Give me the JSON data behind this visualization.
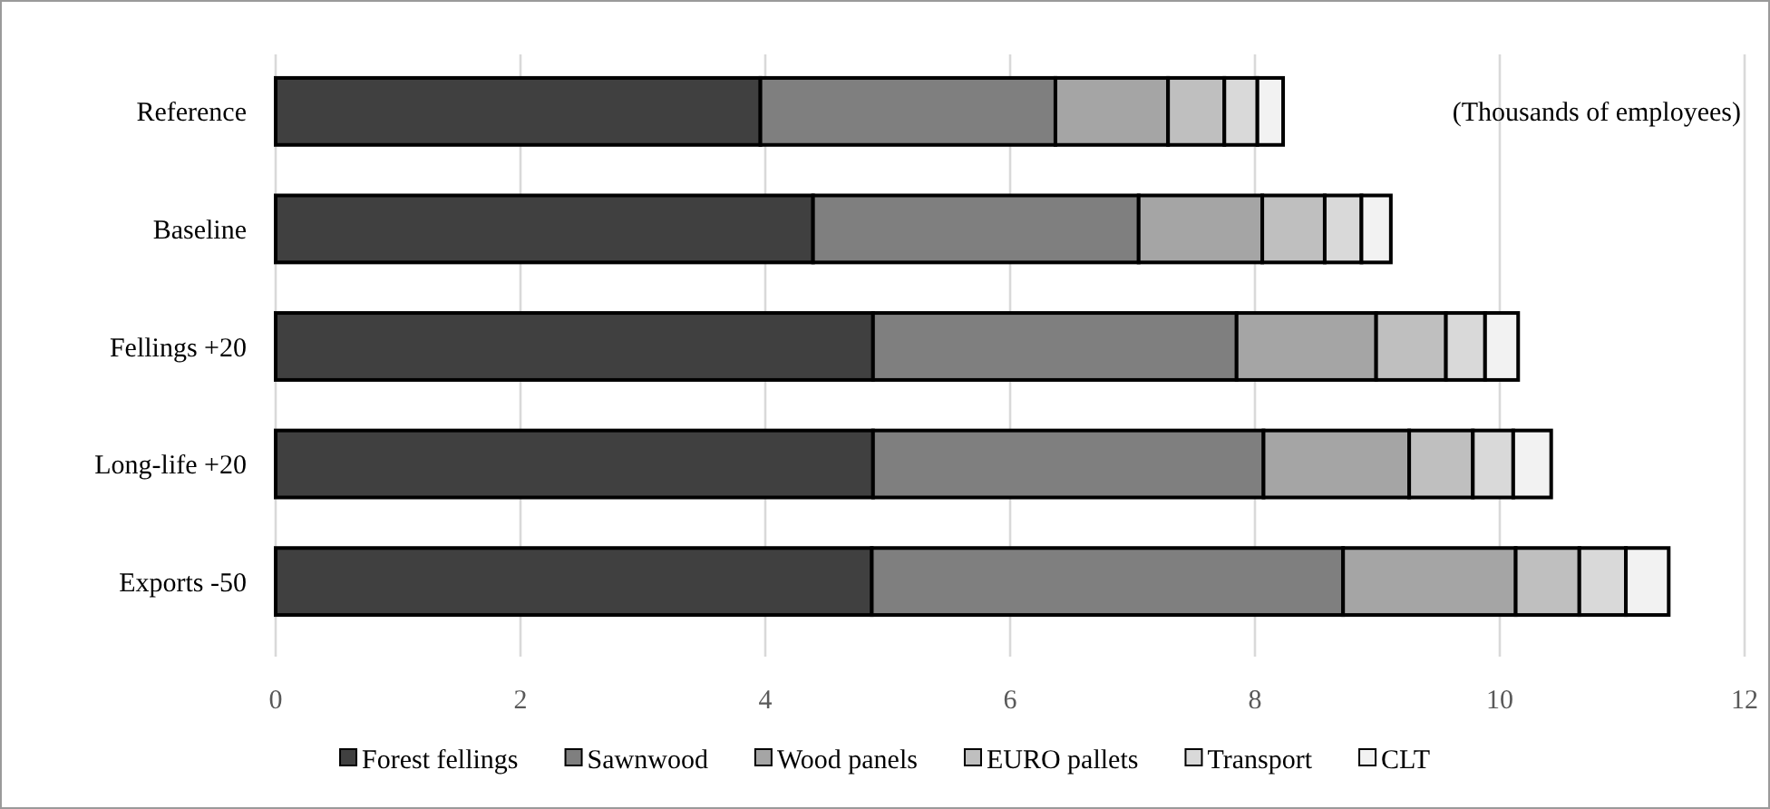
{
  "chart_data": {
    "type": "bar",
    "orientation": "horizontal",
    "stacked": true,
    "categories": [
      "Reference",
      "Baseline",
      "Fellings +20",
      "Long-life +20",
      "Exports -50"
    ],
    "series": [
      {
        "name": "Forest fellings",
        "color": "#404040",
        "values": [
          3.96,
          4.39,
          4.88,
          4.88,
          4.87
        ]
      },
      {
        "name": "Sawnwood",
        "color": "#7f7f7f",
        "values": [
          2.41,
          2.66,
          2.97,
          3.19,
          3.85
        ]
      },
      {
        "name": "Wood panels",
        "color": "#a5a5a5",
        "values": [
          0.92,
          1.01,
          1.14,
          1.19,
          1.41
        ]
      },
      {
        "name": "EURO pallets",
        "color": "#bfbfbf",
        "values": [
          0.46,
          0.51,
          0.57,
          0.52,
          0.52
        ]
      },
      {
        "name": "Transport",
        "color": "#d9d9d9",
        "values": [
          0.27,
          0.3,
          0.32,
          0.33,
          0.38
        ]
      },
      {
        "name": "CLT",
        "color": "#f2f2f2",
        "values": [
          0.21,
          0.24,
          0.27,
          0.31,
          0.35
        ]
      }
    ],
    "xlim": [
      0,
      12
    ],
    "xticks": [
      0,
      2,
      4,
      6,
      8,
      10,
      12
    ],
    "grid": "x",
    "legend": "bottom",
    "annotations": [
      "(Thousands of employees)"
    ]
  }
}
